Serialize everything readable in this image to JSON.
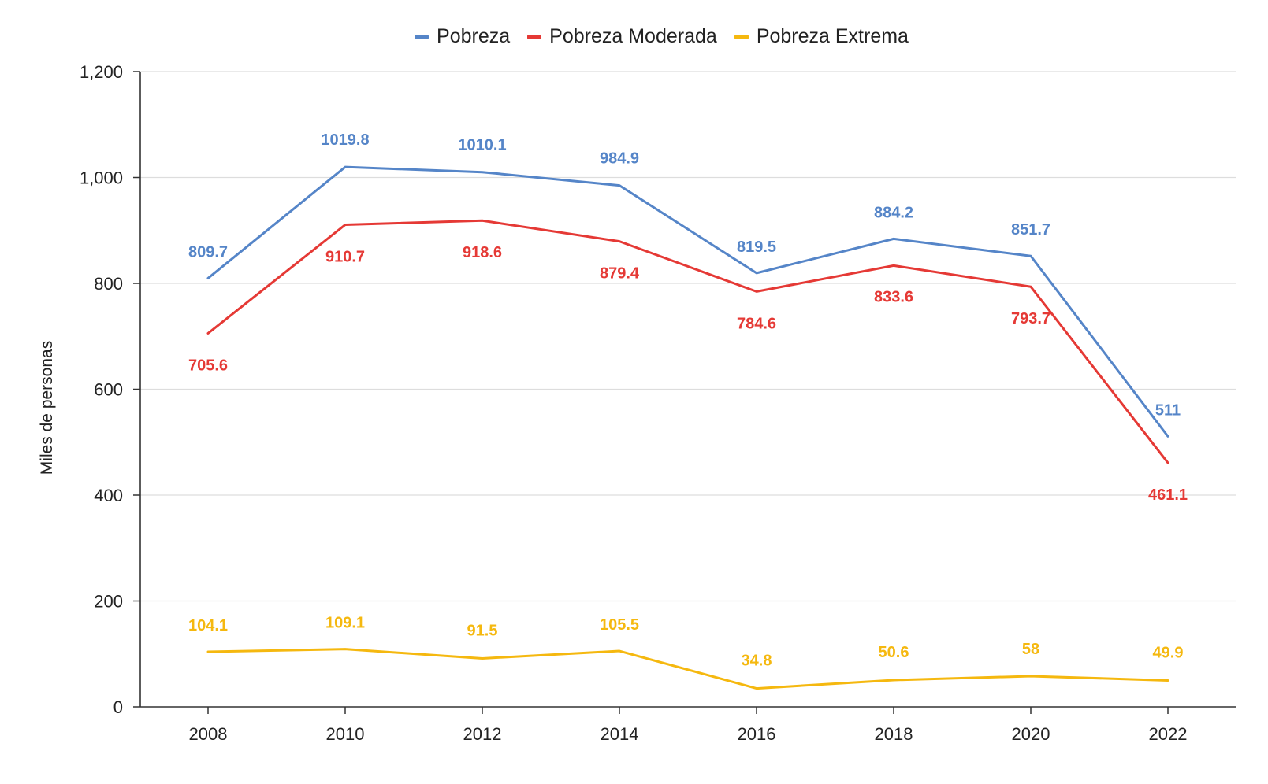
{
  "chart_data": {
    "type": "line",
    "title": "",
    "xlabel": "",
    "ylabel": "Miles de personas",
    "categories": [
      "2008",
      "2010",
      "2012",
      "2014",
      "2016",
      "2018",
      "2020",
      "2022"
    ],
    "y_ticks": [
      "0",
      "200",
      "400",
      "600",
      "800",
      "1,000",
      "1,200"
    ],
    "y_tick_values": [
      0,
      200,
      400,
      600,
      800,
      1000,
      1200
    ],
    "ylim": [
      0,
      1200
    ],
    "grid": true,
    "legend_position": "top",
    "series": [
      {
        "name": "Pobreza",
        "color": "#5585c8",
        "values": [
          809.7,
          1019.8,
          1010.1,
          984.9,
          819.5,
          884.2,
          851.7,
          511
        ],
        "labels": [
          "809.7",
          "1019.8",
          "1010.1",
          "984.9",
          "819.5",
          "884.2",
          "851.7",
          "511"
        ]
      },
      {
        "name": "Pobreza Moderada",
        "color": "#e53935",
        "values": [
          705.6,
          910.7,
          918.6,
          879.4,
          784.6,
          833.6,
          793.7,
          461.1
        ],
        "labels": [
          "705.6",
          "910.7",
          "918.6",
          "879.4",
          "784.6",
          "833.6",
          "793.7",
          "461.1"
        ]
      },
      {
        "name": "Pobreza Extrema",
        "color": "#f5b80f",
        "values": [
          104.1,
          109.1,
          91.5,
          105.5,
          34.8,
          50.6,
          58,
          49.9
        ],
        "labels": [
          "104.1",
          "109.1",
          "91.5",
          "105.5",
          "34.8",
          "50.6",
          "58",
          "49.9"
        ]
      }
    ]
  }
}
